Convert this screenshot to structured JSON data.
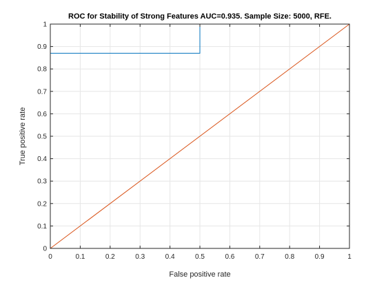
{
  "chart_data": {
    "type": "line",
    "title": "ROC for Stability of Strong Features AUC=0.935. Sample Size: 5000, RFE.",
    "xlabel": "False positive rate",
    "ylabel": "True positive rate",
    "xlim": [
      0,
      1
    ],
    "ylim": [
      0,
      1
    ],
    "xticks": [
      "0",
      "0.1",
      "0.2",
      "0.3",
      "0.4",
      "0.5",
      "0.6",
      "0.7",
      "0.8",
      "0.9",
      "1"
    ],
    "yticks": [
      "0",
      "0.1",
      "0.2",
      "0.3",
      "0.4",
      "0.5",
      "0.6",
      "0.7",
      "0.8",
      "0.9",
      "1"
    ],
    "grid": true,
    "series": [
      {
        "color": "#0072BD",
        "x": [
          0,
          0,
          0.5,
          0.5,
          1
        ],
        "y": [
          0,
          0.87,
          0.87,
          1,
          1
        ]
      },
      {
        "color": "#D95319",
        "x": [
          0,
          1
        ],
        "y": [
          0,
          1
        ]
      }
    ]
  }
}
